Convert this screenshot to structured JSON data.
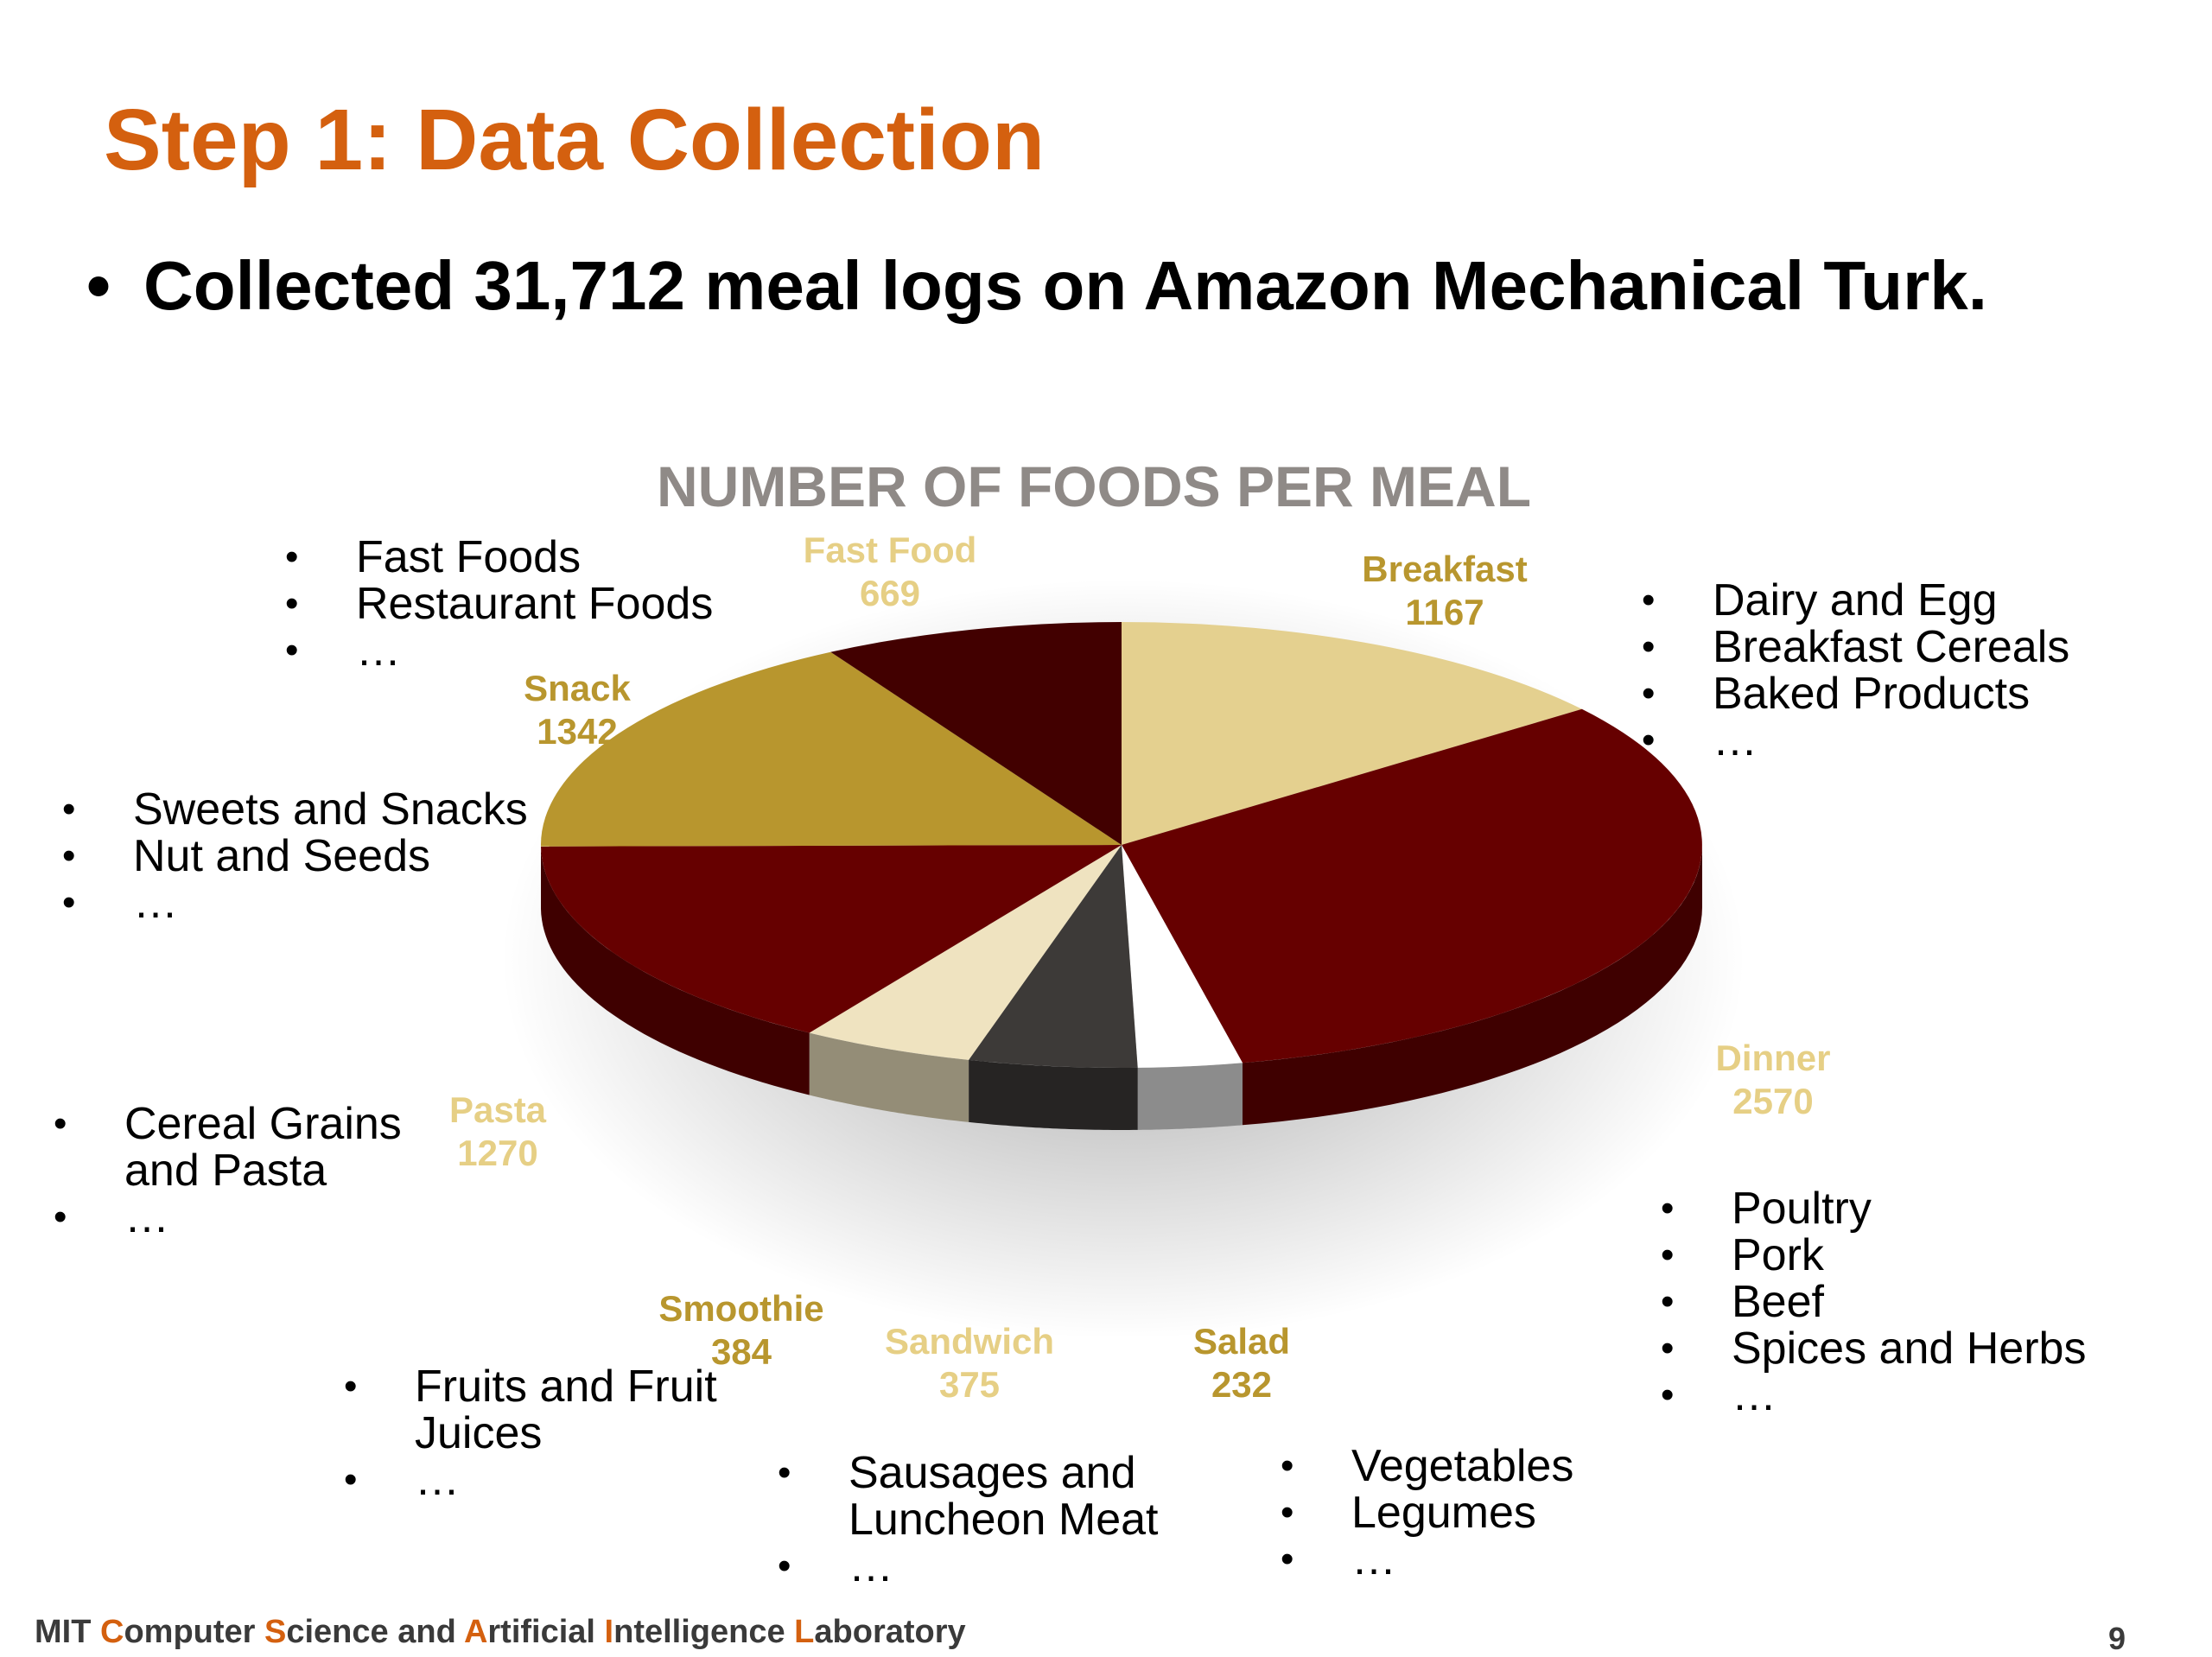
{
  "slide": {
    "title": "Step 1: Data Collection",
    "bullet": "Collected 31,712 meal logs on Amazon Mechanical Turk.",
    "page_number": "9"
  },
  "footer": {
    "parts": [
      {
        "text": "MIT ",
        "accent": false
      },
      {
        "text": "C",
        "accent": true
      },
      {
        "text": "omputer ",
        "accent": false
      },
      {
        "text": "S",
        "accent": true
      },
      {
        "text": "cience and ",
        "accent": false
      },
      {
        "text": "A",
        "accent": true
      },
      {
        "text": "rtificial ",
        "accent": false
      },
      {
        "text": "I",
        "accent": true
      },
      {
        "text": "ntelligence ",
        "accent": false
      },
      {
        "text": "L",
        "accent": true
      },
      {
        "text": "aboratory",
        "accent": false
      }
    ]
  },
  "colors": {
    "title": "#d4600f",
    "chart_title": "#8f8a87",
    "label_gold": "#b8962e",
    "label_light": "#e6cf85"
  },
  "chart_data": {
    "type": "pie",
    "style": "3d",
    "title": "NUMBER OF FOODS PER MEAL",
    "slices": [
      {
        "label": "Breakfast",
        "value": 1167,
        "color": "#e4d08f",
        "label_style": "gold"
      },
      {
        "label": "Dinner",
        "value": 2570,
        "color": "#660000",
        "label_style": "light"
      },
      {
        "label": "Salad",
        "value": 232,
        "color": "#ffffff",
        "label_style": "gold"
      },
      {
        "label": "Sandwich",
        "value": 375,
        "color": "#3d3a38",
        "label_style": "light"
      },
      {
        "label": "Smoothie",
        "value": 384,
        "color": "#efe3c0",
        "label_style": "gold"
      },
      {
        "label": "Pasta",
        "value": 1270,
        "color": "#660000",
        "label_style": "light"
      },
      {
        "label": "Snack",
        "value": 1342,
        "color": "#b8962e",
        "label_style": "gold"
      },
      {
        "label": "Fast Food",
        "value": 669,
        "color": "#420000",
        "label_style": "light"
      }
    ]
  },
  "annotations": {
    "fast_food": [
      "Fast Foods",
      "Restaurant Foods",
      "…"
    ],
    "breakfast": [
      "Dairy and Egg",
      "Breakfast Cereals",
      "Baked Products",
      "…"
    ],
    "snack": [
      "Sweets and Snacks",
      "Nut and Seeds",
      "…"
    ],
    "pasta": [
      "Cereal Grains and Pasta",
      "…"
    ],
    "dinner": [
      "Poultry",
      "Pork",
      "Beef",
      "Spices and Herbs",
      "…"
    ],
    "smoothie": [
      "Fruits and Fruit Juices",
      "…"
    ],
    "sandwich": [
      "Sausages and Luncheon Meat",
      "…"
    ],
    "salad": [
      "Vegetables",
      "Legumes",
      "…"
    ]
  }
}
